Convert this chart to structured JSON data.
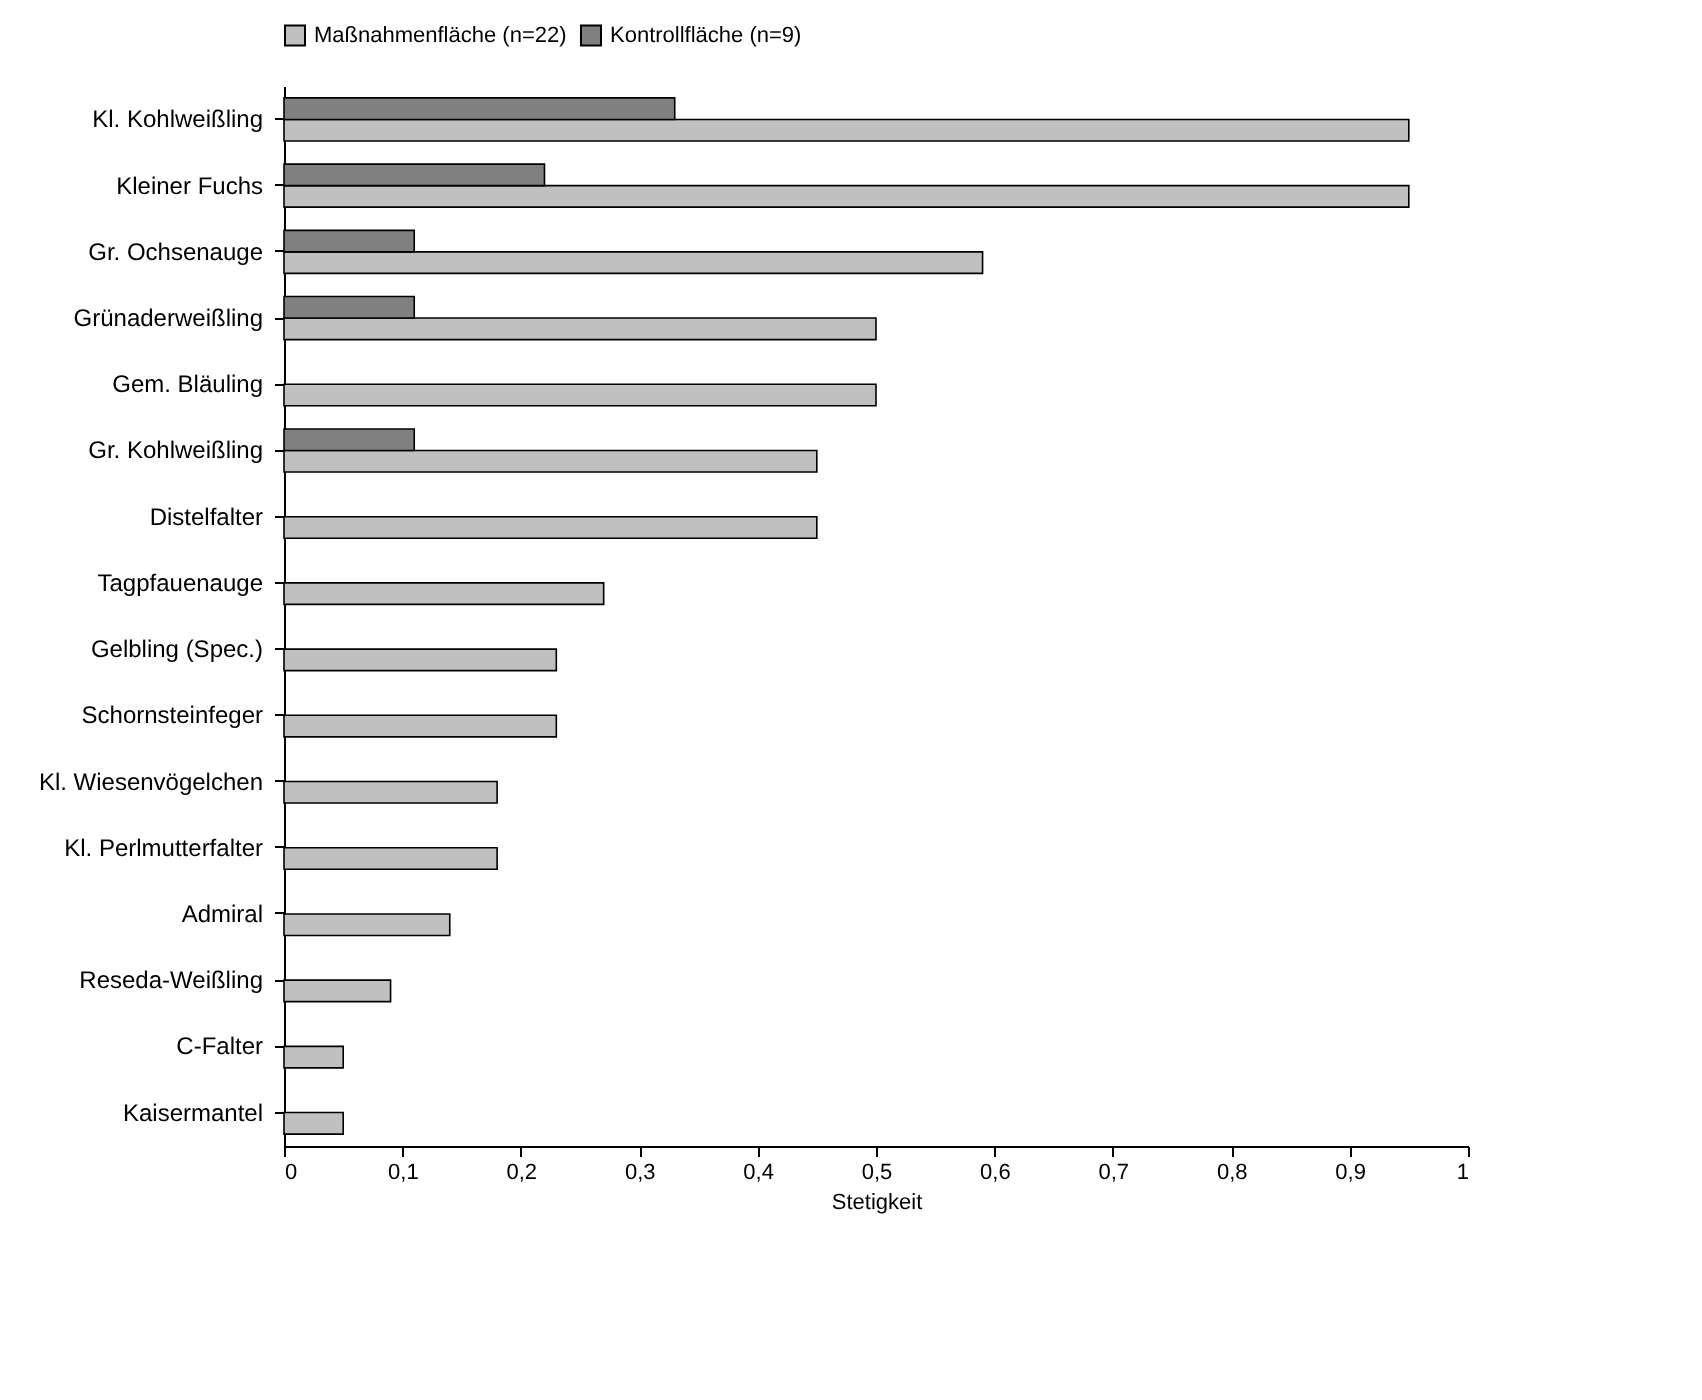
{
  "chart_data": {
    "type": "bar",
    "orientation": "horizontal",
    "xlabel": "Stetigkeit",
    "categories": [
      "Kl. Kohlweißling",
      "Kleiner Fuchs",
      "Gr. Ochsenauge",
      "Grünaderweißling",
      "Gem. Bläuling",
      "Gr. Kohlweißling",
      "Distelfalter",
      "Tagpfauenauge",
      "Gelbling (Spec.)",
      "Schornsteinfeger",
      "Kl. Wiesenvögelchen",
      "Kl. Perlmutterfalter",
      "Admiral",
      "Reseda-Weißling",
      "C-Falter",
      "Kaisermantel"
    ],
    "series": [
      {
        "name": "Maßnahmenfläche (n=22)",
        "color": "#c0c0c0",
        "values": [
          0.95,
          0.95,
          0.59,
          0.5,
          0.5,
          0.45,
          0.45,
          0.27,
          0.23,
          0.23,
          0.18,
          0.18,
          0.14,
          0.09,
          0.05,
          0.05
        ]
      },
      {
        "name": "Kontrollfläche (n=9)",
        "color": "#808080",
        "values": [
          0.33,
          0.22,
          0.11,
          0.11,
          null,
          0.11,
          null,
          null,
          null,
          null,
          null,
          null,
          null,
          null,
          null,
          null
        ]
      }
    ],
    "xlim": [
      0,
      1
    ],
    "xticks": [
      0,
      {
        "value": 0.1,
        "label": "0,1"
      },
      {
        "value": 0.2,
        "label": "0,2"
      },
      {
        "value": 0.3,
        "label": "0,3"
      },
      {
        "value": 0.4,
        "label": "0,4"
      },
      {
        "value": 0.5,
        "label": "0,5"
      },
      {
        "value": 0.6,
        "label": "0,6"
      },
      {
        "value": 0.7,
        "label": "0,7"
      },
      {
        "value": 0.8,
        "label": "0,8"
      },
      {
        "value": 0.9,
        "label": "0,9"
      },
      1
    ],
    "grid": false,
    "legend": "top"
  }
}
